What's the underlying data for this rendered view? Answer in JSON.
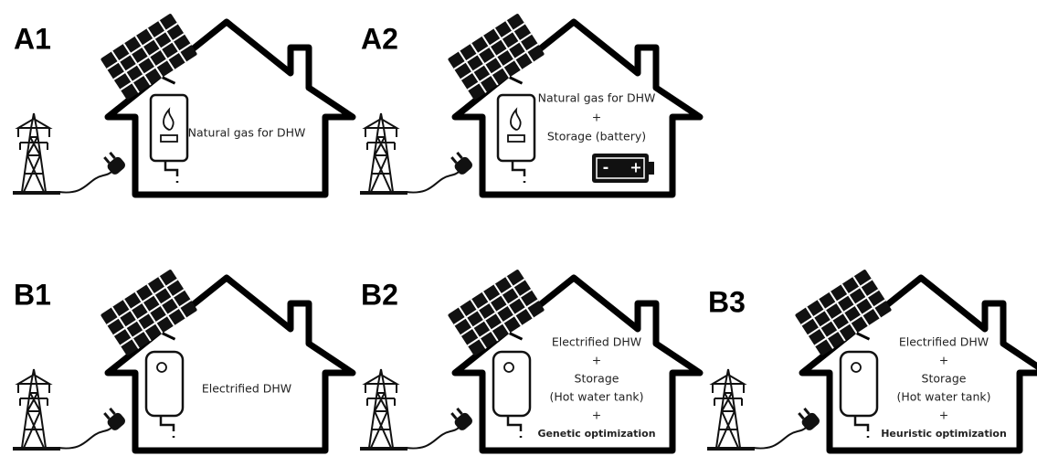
{
  "panels": [
    {
      "label": "A1",
      "heater": "boiler",
      "lines": [
        "Natural gas for DHW"
      ]
    },
    {
      "label": "A2",
      "heater": "boiler",
      "lines": [
        "Natural gas for DHW",
        "+",
        "Storage (battery)"
      ],
      "battery_signs": [
        "-",
        "+"
      ]
    },
    {
      "label": "B1",
      "heater": "tank",
      "lines": [
        "Electrified DHW"
      ]
    },
    {
      "label": "B2",
      "heater": "tank",
      "lines": [
        "Electrified DHW",
        "+",
        "Storage",
        "(Hot water tank)",
        "+"
      ],
      "optimization": "Genetic optimization"
    },
    {
      "label": "B3",
      "heater": "tank",
      "lines": [
        "Electrified DHW",
        "+",
        "Storage",
        "(Hot water tank)",
        "+"
      ],
      "optimization": "Heuristic optimization"
    }
  ]
}
